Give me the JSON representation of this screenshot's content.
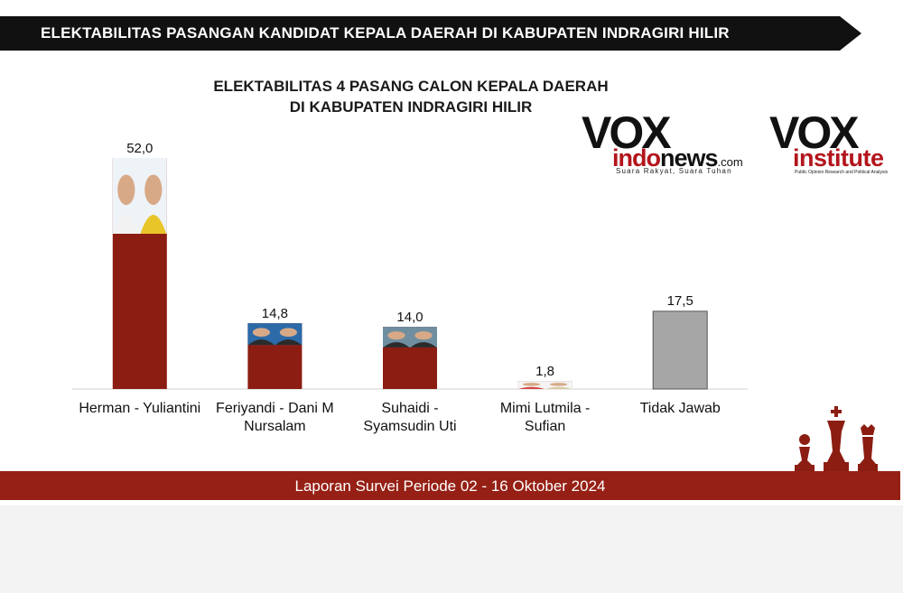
{
  "header": {
    "banner": "ELEKTABILITAS PASANGAN KANDIDAT KEPALA  DAERAH DI KABUPATEN INDRAGIRI HILIR"
  },
  "logos": {
    "voxindo": {
      "vox": "VOX",
      "sub_red": "indo",
      "sub_black": "news",
      "sub_com": ".com",
      "tagline": "Suara Rakyat, Suara Tuhan"
    },
    "voxinstitute": {
      "vox": "VOX",
      "sub": "institute",
      "tagline": "Public Opinion Research and Political Analysis"
    }
  },
  "footer": {
    "text": "Laporan Survei Periode 02 - 16 Oktober 2024"
  },
  "colors": {
    "bar_candidate": "#8c1d12",
    "bar_other": "#a6a6a6",
    "banner": "#111111",
    "footer": "#962015"
  },
  "chart_data": {
    "type": "bar",
    "title": [
      "ELEKTABILITAS 4 PASANG CALON KEPALA DAERAH",
      "DI KABUPATEN INDRAGIRI HILIR"
    ],
    "categories": [
      [
        "Herman - Yuliantini"
      ],
      [
        "Feriyandi - Dani M",
        "Nursalam"
      ],
      [
        "Suhaidi -",
        "Syamsudin Uti"
      ],
      [
        "Mimi Lutmila -",
        "Sufian"
      ],
      [
        "Tidak Jawab"
      ]
    ],
    "values": [
      52.0,
      14.8,
      14.0,
      1.8,
      17.5
    ],
    "value_labels": [
      "52,0",
      "14,8",
      "14,0",
      "1,8",
      "17,5"
    ],
    "bar_colors": [
      "#8c1d12",
      "#8c1d12",
      "#8c1d12",
      "#8c1d12",
      "#a6a6a6"
    ],
    "photos": [
      true,
      true,
      true,
      true,
      false
    ],
    "ylim": [
      0,
      52
    ],
    "grid": false
  }
}
